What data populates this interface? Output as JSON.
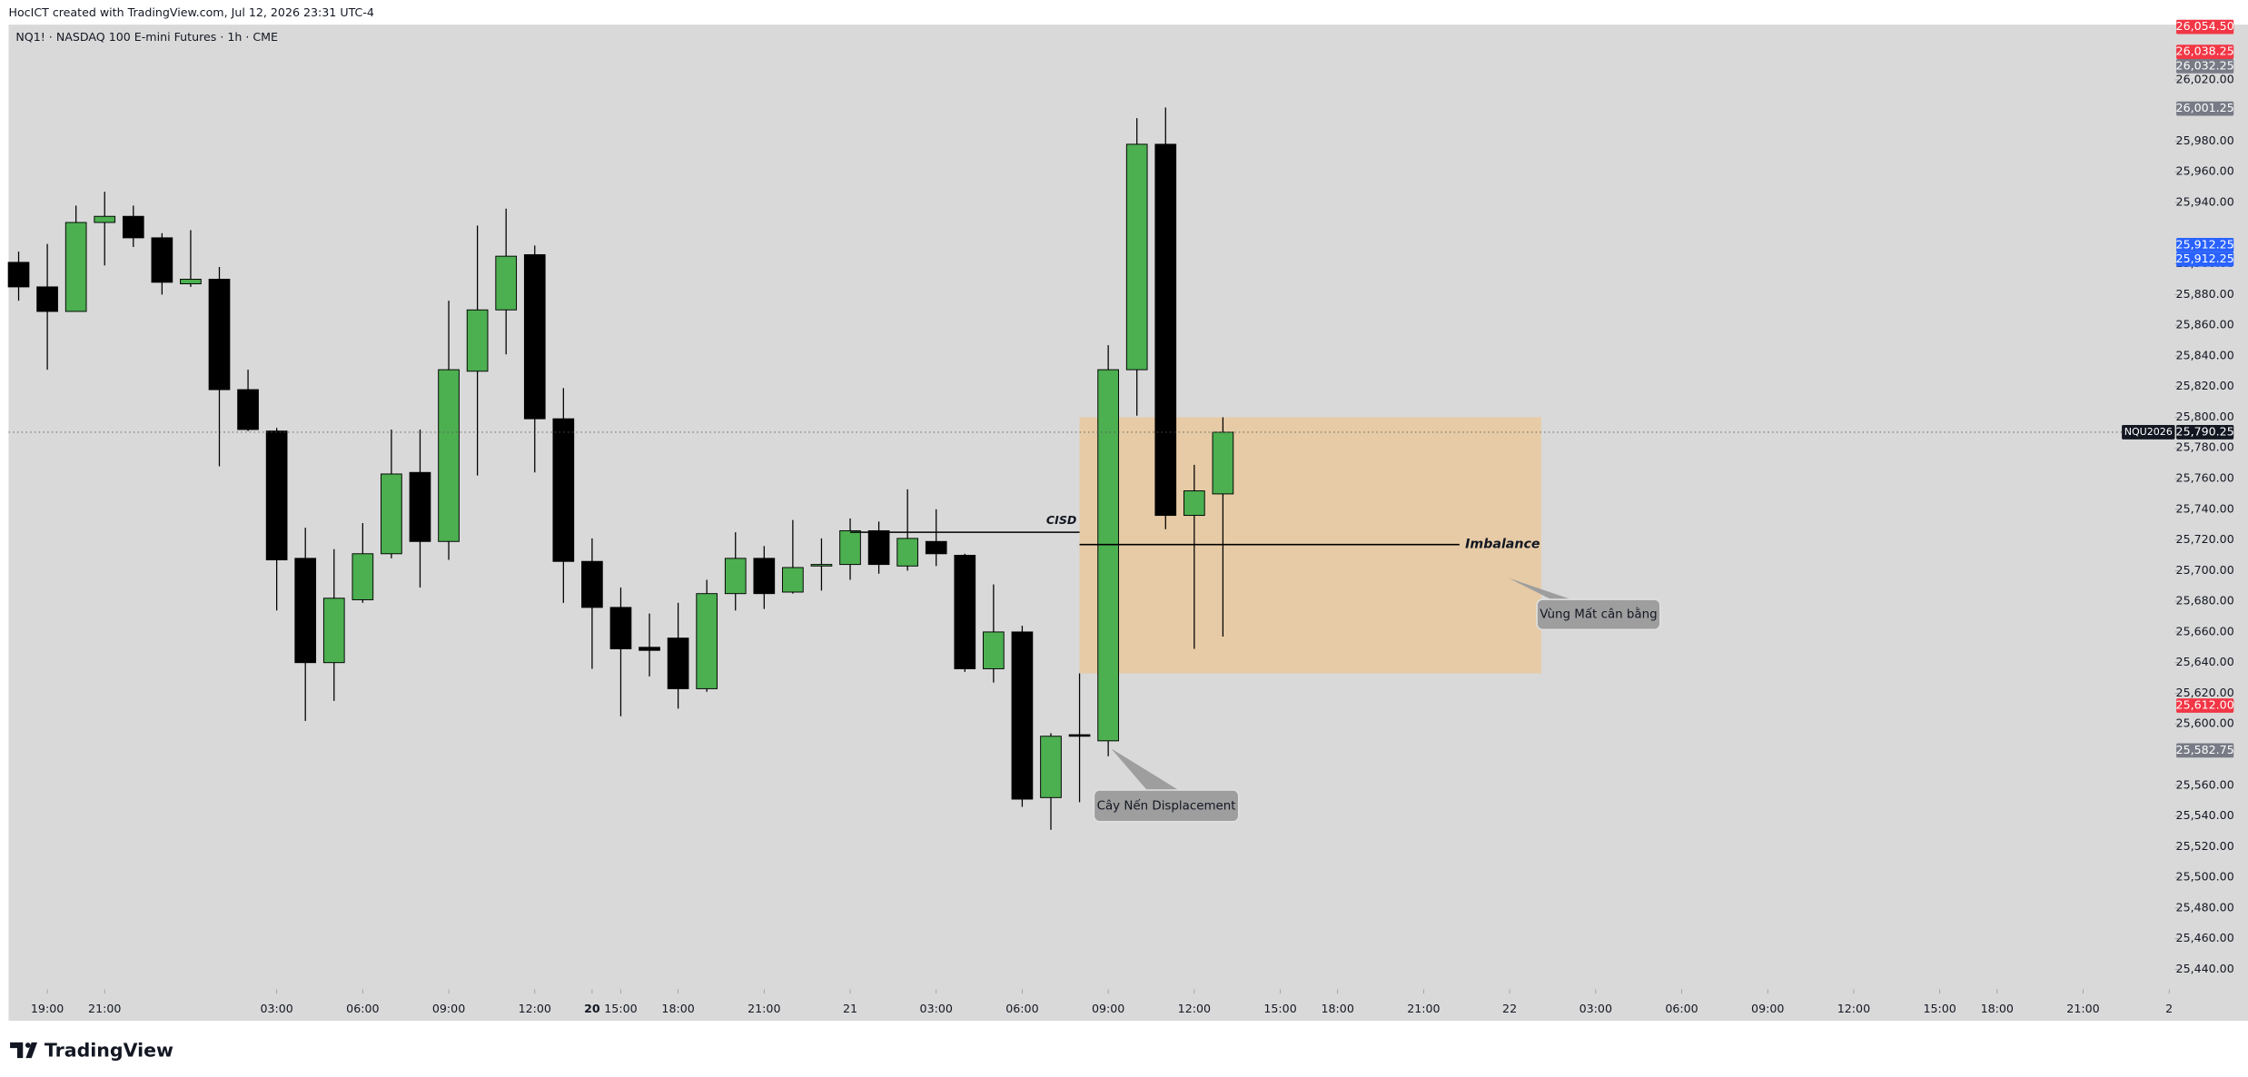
{
  "header": {
    "credit": "HocICT created with TradingView.com, Jul 12, 2026 23:31 UTC-4",
    "logo": "TradingView"
  },
  "chart_data": {
    "type": "candlestick",
    "title": "NQ1! · NASDAQ 100 E-mini Futures · 1h · CME",
    "x": [
      0,
      1,
      2,
      3,
      4,
      5,
      6,
      7,
      8,
      9,
      10,
      11,
      12,
      13,
      14,
      15,
      16,
      17,
      18,
      19,
      20,
      21,
      22,
      23,
      24,
      25,
      26,
      27,
      28,
      29,
      30,
      31,
      32,
      33,
      34,
      35,
      36,
      37,
      38,
      39,
      40,
      41,
      42
    ],
    "open": [
      25901,
      25885,
      25869,
      25927,
      25931,
      25917,
      25887,
      25890,
      25818,
      25791,
      25708,
      25640,
      25681,
      25711,
      25764,
      25719,
      25830,
      25870,
      25906,
      25799,
      25706,
      25676,
      25650,
      25656,
      25623,
      25685,
      25708,
      25686,
      25703,
      25704,
      25726,
      25703,
      25719,
      25710,
      25636,
      25660,
      25552,
      25593,
      25589,
      25831,
      25978,
      25736,
      25750
    ],
    "high": [
      25908,
      25913,
      25938,
      25947,
      25938,
      25920,
      25922,
      25898,
      25831,
      25793,
      25728,
      25714,
      25731,
      25792,
      25792,
      25876,
      25925,
      25936,
      25912,
      25819,
      25721,
      25689,
      25672,
      25679,
      25694,
      25725,
      25716,
      25733,
      25721,
      25734,
      25732,
      25753,
      25740,
      25711,
      25691,
      25664,
      25594,
      25633,
      25847,
      25995,
      26002,
      25769,
      25800
    ],
    "low": [
      25876,
      25831,
      25869,
      25899,
      25911,
      25880,
      25885,
      25768,
      25791,
      25674,
      25602,
      25615,
      25679,
      25708,
      25689,
      25707,
      25762,
      25841,
      25764,
      25679,
      25636,
      25605,
      25631,
      25610,
      25621,
      25674,
      25675,
      25685,
      25687,
      25694,
      25698,
      25700,
      25703,
      25634,
      25627,
      25546,
      25531,
      25549,
      25579,
      25801,
      25727,
      25649,
      25657
    ],
    "close": [
      25885,
      25869,
      25927,
      25931,
      25917,
      25888,
      25890,
      25818,
      25792,
      25707,
      25640,
      25682,
      25711,
      25763,
      25719,
      25831,
      25870,
      25905,
      25799,
      25706,
      25676,
      25649,
      25648,
      25623,
      25685,
      25708,
      25685,
      25702,
      25704,
      25726,
      25704,
      25721,
      25711,
      25636,
      25660,
      25551,
      25592,
      25592,
      25831,
      25978,
      25736,
      25752,
      25790.25
    ],
    "up_color": "#4caf50",
    "down_color": "#000000",
    "xlim": [
      -0.35,
      75.2
    ],
    "ylim": [
      25427,
      26056
    ],
    "xticks": [
      {
        "value": 1,
        "label": "19:00"
      },
      {
        "value": 3,
        "label": "21:00"
      },
      20,
      {
        "value": 9,
        "label": "03:00"
      },
      {
        "value": 12,
        "label": "06:00"
      },
      {
        "value": 15,
        "label": "09:00"
      },
      {
        "value": 18,
        "label": "12:00"
      },
      {
        "value": 21,
        "label": "15:00"
      },
      {
        "value": 23,
        "label": "18:00"
      },
      {
        "value": 26,
        "label": "21:00"
      },
      {
        "value": 29,
        "label": "21"
      },
      {
        "value": 32,
        "label": "03:00"
      },
      {
        "value": 35,
        "label": "06:00"
      },
      {
        "value": 38,
        "label": "09:00"
      },
      {
        "value": 41,
        "label": "12:00"
      },
      {
        "value": 44,
        "label": "15:00"
      },
      {
        "value": 46,
        "label": "18:00"
      },
      {
        "value": 49,
        "label": "21:00"
      },
      {
        "value": 52,
        "label": "22"
      },
      {
        "value": 55,
        "label": "03:00"
      },
      {
        "value": 58,
        "label": "06:00"
      },
      {
        "value": 61,
        "label": "09:00"
      },
      {
        "value": 64,
        "label": "12:00"
      },
      {
        "value": 67,
        "label": "15:00"
      },
      {
        "value": 69,
        "label": "18:00"
      },
      {
        "value": 72,
        "label": "21:00"
      },
      {
        "value": 75,
        "label": "2"
      }
    ],
    "yticks": [
      {
        "value": 25440,
        "label": "25,440.00"
      },
      {
        "value": 25460,
        "label": "25,460.00"
      },
      {
        "value": 25480,
        "label": "25,480.00"
      },
      {
        "value": 25500,
        "label": "25,500.00"
      },
      {
        "value": 25520,
        "label": "25,520.00"
      },
      {
        "value": 25540,
        "label": "25,540.00"
      },
      {
        "value": 25560,
        "label": "25,560.00"
      },
      {
        "value": 25600,
        "label": "25,600.00"
      },
      {
        "value": 25620,
        "label": "25,620.00"
      },
      {
        "value": 25640,
        "label": "25,640.00"
      },
      {
        "value": 25660,
        "label": "25,660.00"
      },
      {
        "value": 25680,
        "label": "25,680.00"
      },
      {
        "value": 25700,
        "label": "25,700.00"
      },
      {
        "value": 25720,
        "label": "25,720.00"
      },
      {
        "value": 25740,
        "label": "25,740.00"
      },
      {
        "value": 25760,
        "label": "25,760.00"
      },
      {
        "value": 25780,
        "label": "25,780.00"
      },
      {
        "value": 25800,
        "label": "25,800.00"
      },
      {
        "value": 25820,
        "label": "25,820.00"
      },
      {
        "value": 25840,
        "label": "25,840.00"
      },
      {
        "value": 25860,
        "label": "25,860.00"
      },
      {
        "value": 25880,
        "label": "25,880.00"
      },
      {
        "value": 25900,
        "label": "25,900.00"
      },
      {
        "value": 25940,
        "label": "25,940.00"
      },
      {
        "value": 25960,
        "label": "25,960.00"
      },
      {
        "value": 25980,
        "label": "25,980.00"
      },
      {
        "value": 26020,
        "label": "26,020.00"
      }
    ],
    "price_labels": [
      {
        "value": 26054.5,
        "label": "26,054.50",
        "color": "#f23645"
      },
      {
        "value": 26038.25,
        "label": "26,038.25",
        "color": "#f23645"
      },
      {
        "value": 26032.25,
        "label": "26,032.25",
        "color": "#787b86"
      },
      {
        "value": 26001.25,
        "label": "26,001.25",
        "color": "#787b86"
      },
      {
        "value": 25912.25,
        "label": "25,912.25",
        "color": "#2962ff"
      },
      {
        "value": 25912.25,
        "label": "25,912.25",
        "color": "#2962ff"
      },
      {
        "value": 25790.25,
        "label": "25,790.25",
        "color": "#131722",
        "tag": "NQU2026"
      },
      {
        "value": 25612,
        "label": "25,612.00",
        "color": "#f23645"
      },
      {
        "value": 25582.75,
        "label": "25,582.75",
        "color": "#787b86"
      }
    ],
    "zone": {
      "x_start": 37,
      "x_end": 53.1,
      "top": 25800,
      "bottom": 25633,
      "color": "#e6cba6"
    },
    "annotations": [
      {
        "text": "CISD",
        "price": 25725,
        "x_start": 29,
        "x_end": 37
      },
      {
        "text": "Imbalance",
        "price": 25717,
        "x_start": 37,
        "x_end": 50.25
      }
    ],
    "callouts": [
      {
        "text": "Vùng Mất cân bằng"
      },
      {
        "text": "Cây Nến Displacement"
      }
    ]
  }
}
